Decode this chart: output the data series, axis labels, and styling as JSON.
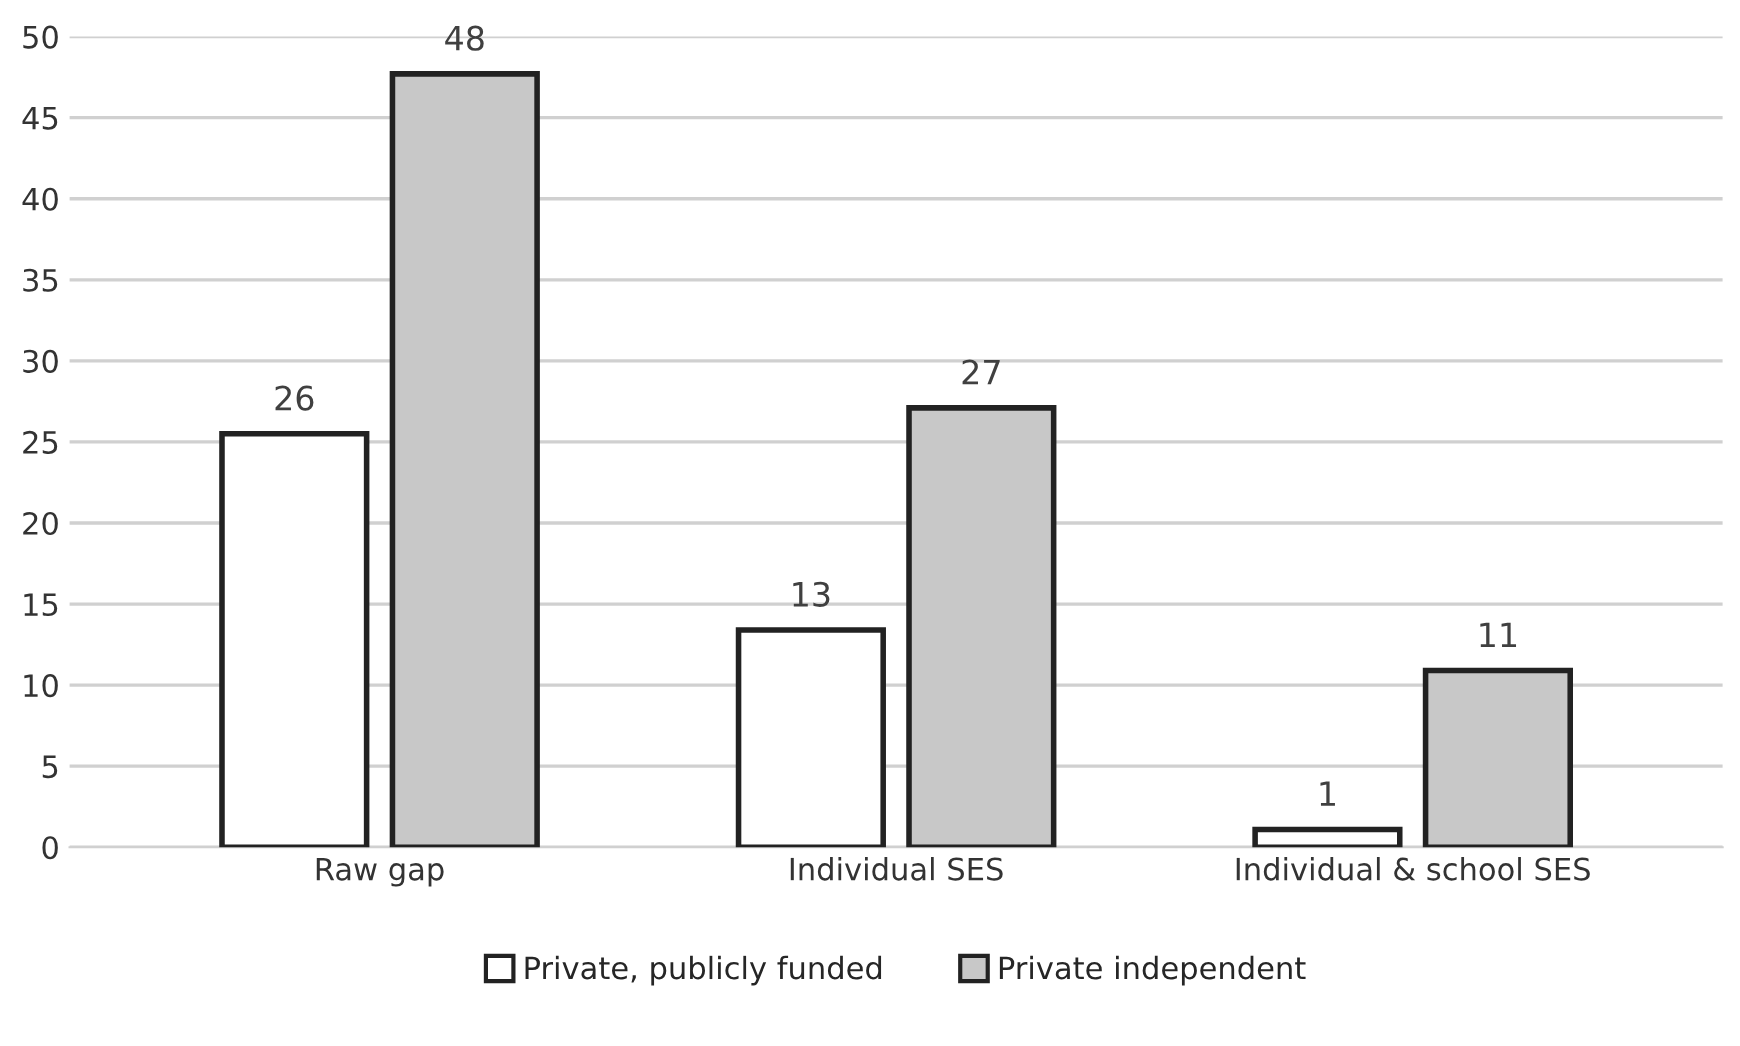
{
  "chart_data": {
    "type": "bar",
    "categories": [
      "Raw gap",
      "Individual SES",
      "Individual & school SES"
    ],
    "series": [
      {
        "name": "Private, publicly funded",
        "color": "#ffffff",
        "values": [
          25.5,
          13.4,
          1.1
        ],
        "value_labels": [
          "26",
          "13",
          "1"
        ]
      },
      {
        "name": "Private independent",
        "color": "#c8c8c8",
        "values": [
          47.7,
          27.1,
          10.9
        ],
        "value_labels": [
          "48",
          "27",
          "11"
        ]
      }
    ],
    "ylim": [
      0,
      50
    ],
    "yticks": [
      0,
      5,
      10,
      15,
      20,
      25,
      30,
      35,
      40,
      45,
      50
    ],
    "grid": "y",
    "legend": "bottom"
  }
}
